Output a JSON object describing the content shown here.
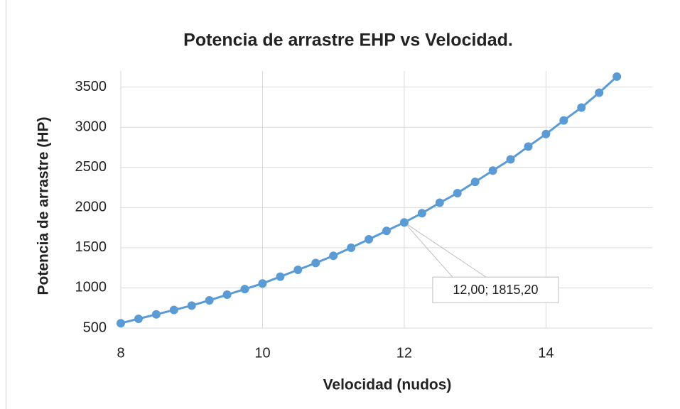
{
  "chart_data": {
    "type": "line",
    "title": "Potencia de arrastre EHP vs Velocidad.",
    "xlabel": "Velocidad (nudos)",
    "ylabel": "Potencia de arrastre (HP)",
    "x": [
      8,
      8.25,
      8.5,
      8.75,
      9,
      9.25,
      9.5,
      9.75,
      10,
      10.25,
      10.5,
      10.75,
      11,
      11.25,
      11.5,
      11.75,
      12,
      12.25,
      12.5,
      12.75,
      13,
      13.25,
      13.5,
      13.75,
      14,
      14.25,
      14.5,
      14.75,
      15
    ],
    "series": [
      {
        "name": "EHP",
        "color": "#5b9bd5",
        "values": [
          560,
          615,
          670,
          725,
          780,
          845,
          915,
          985,
          1055,
          1140,
          1225,
          1310,
          1400,
          1500,
          1605,
          1710,
          1815.2,
          1930,
          2060,
          2180,
          2320,
          2460,
          2600,
          2760,
          2915,
          3085,
          3245,
          3430,
          3630
        ]
      }
    ],
    "xlim": [
      8,
      15.5
    ],
    "xticks": [
      8,
      10,
      12,
      14
    ],
    "ylim": [
      500,
      3700
    ],
    "yticks": [
      500,
      1000,
      1500,
      2000,
      2500,
      3000,
      3500
    ],
    "grid": true,
    "annotations": [
      {
        "text": "12,00; 1815,20",
        "x": 12,
        "y": 1815.2
      }
    ]
  }
}
